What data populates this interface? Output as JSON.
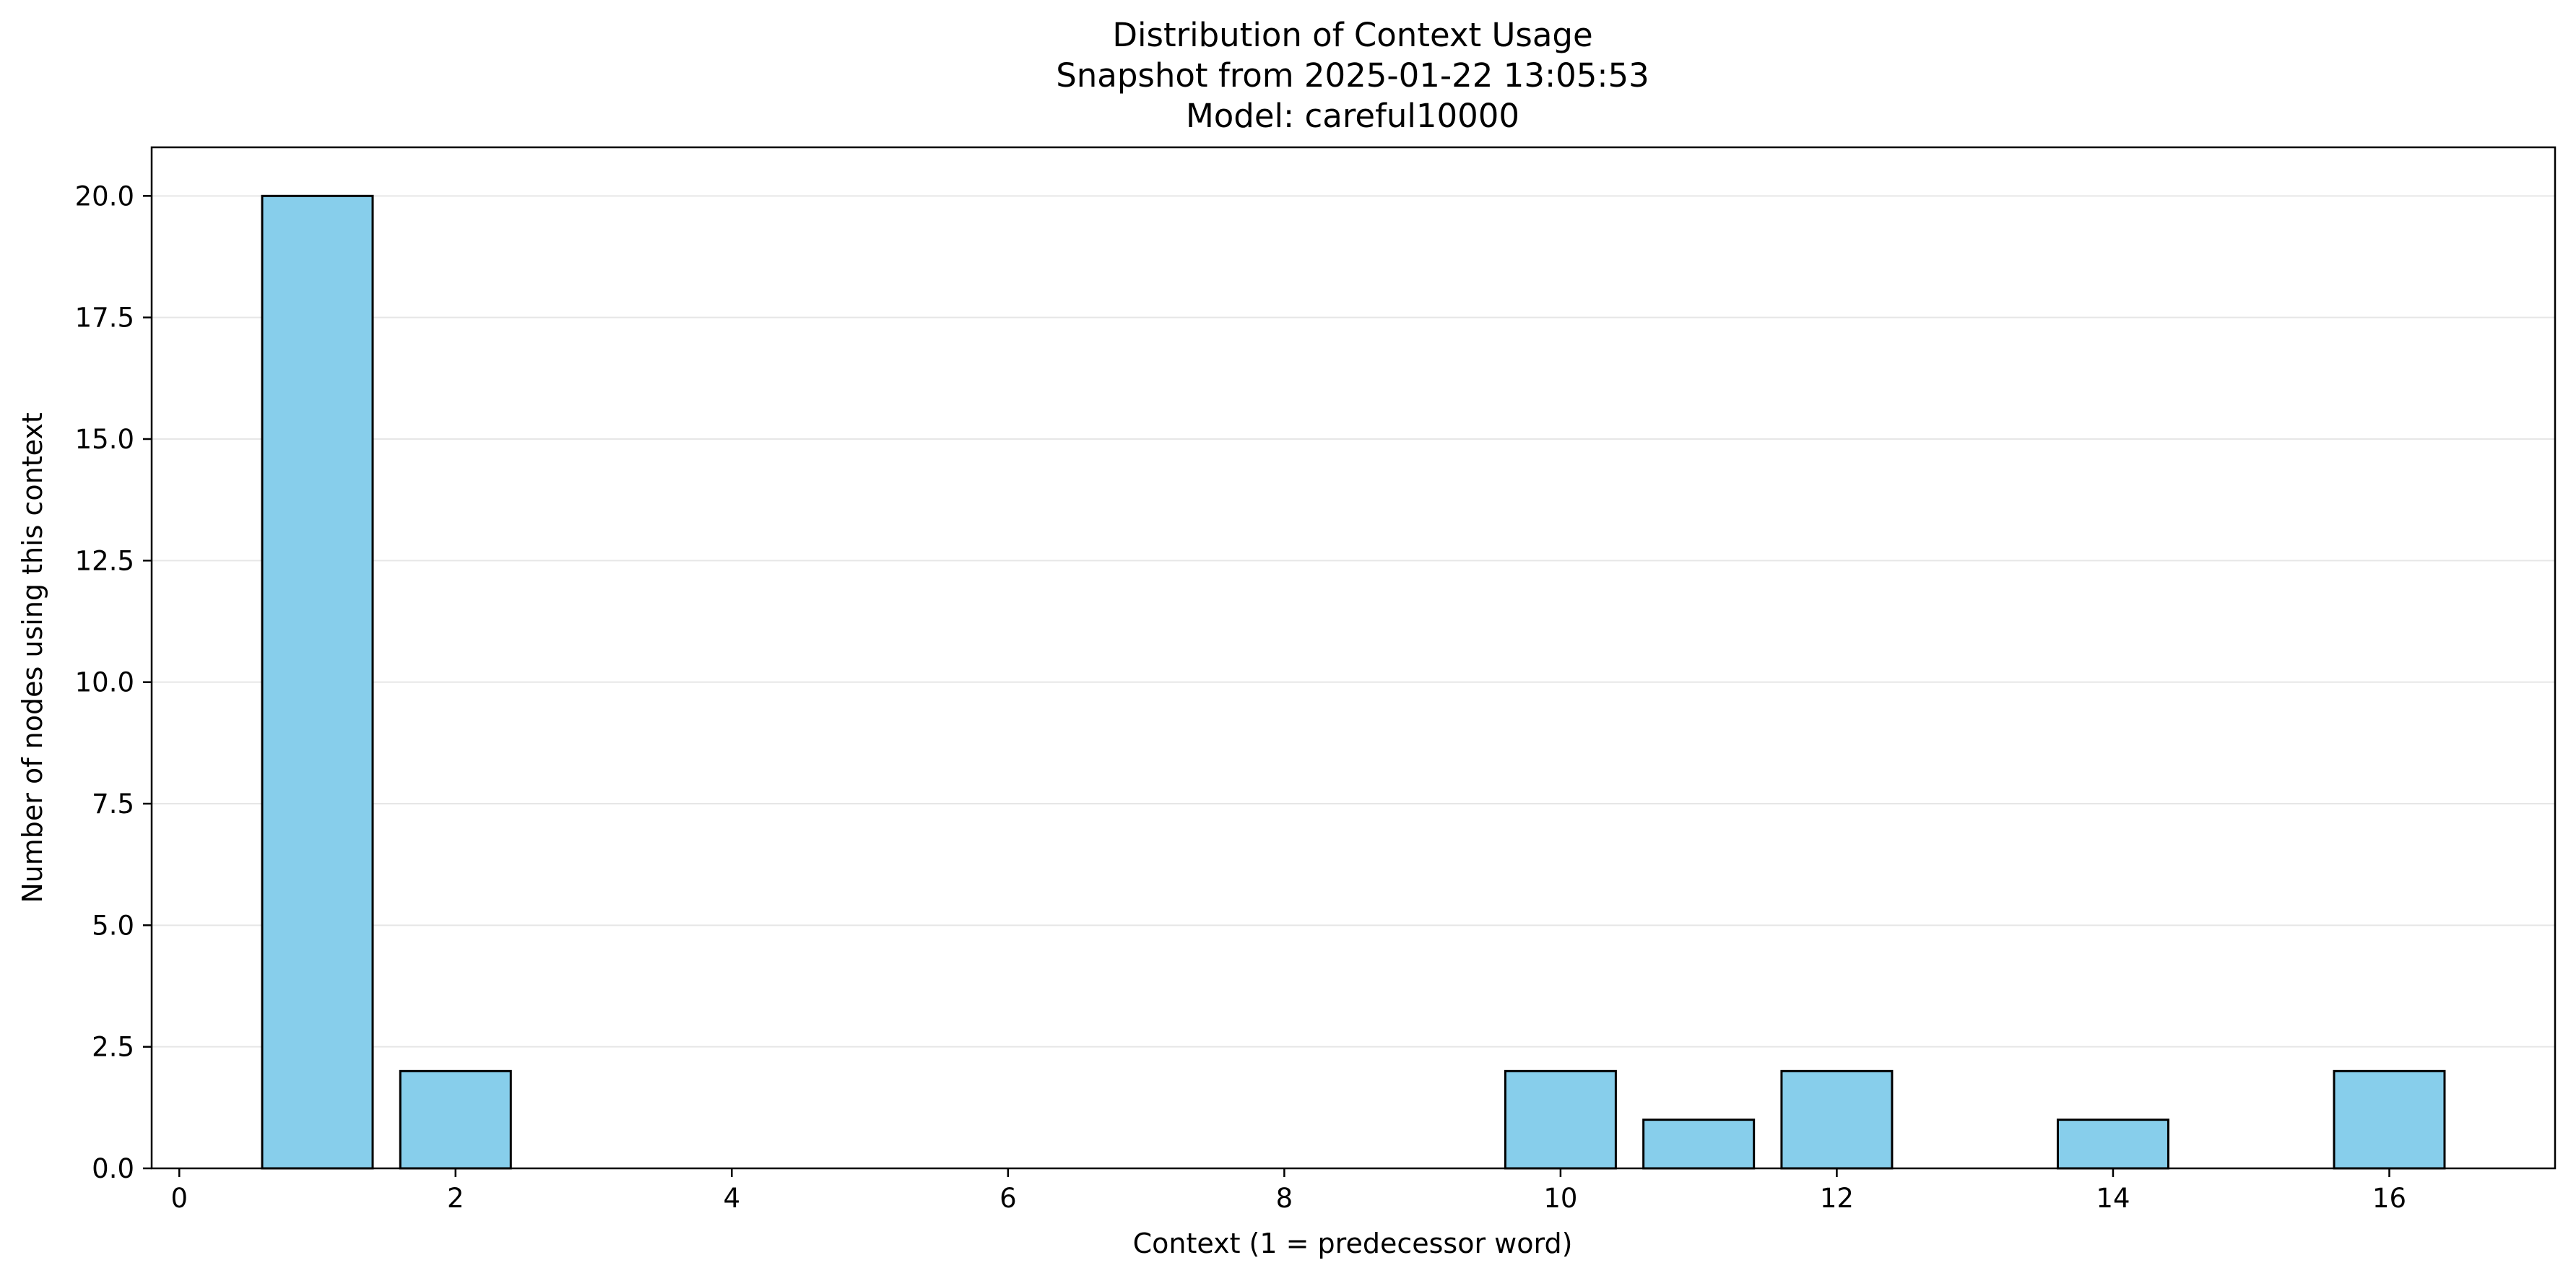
{
  "chart_data": {
    "type": "bar",
    "title_lines": [
      "Distribution of Context Usage",
      "Snapshot from 2025-01-22 13:05:53",
      "Model: careful10000"
    ],
    "xlabel": "Context (1 = predecessor word)",
    "ylabel": "Number of nodes using this context",
    "x": [
      1,
      2,
      10,
      11,
      12,
      14,
      16
    ],
    "values": [
      20,
      2,
      2,
      1,
      2,
      1,
      2
    ],
    "bar_width": 0.8,
    "xlim": [
      -0.2,
      17.2
    ],
    "ylim": [
      0,
      21
    ],
    "xticks": [
      0,
      2,
      4,
      6,
      8,
      10,
      12,
      14,
      16
    ],
    "xtick_labels": [
      "0",
      "2",
      "4",
      "6",
      "8",
      "10",
      "12",
      "14",
      "16"
    ],
    "yticks": [
      0,
      2.5,
      5,
      7.5,
      10,
      12.5,
      15,
      17.5,
      20
    ],
    "ytick_labels": [
      "0.0",
      "2.5",
      "5.0",
      "7.5",
      "10.0",
      "12.5",
      "15.0",
      "17.5",
      "20.0"
    ],
    "grid": "y",
    "legend": "none",
    "colors": {
      "bar_fill": "#87ceeb",
      "bar_edge": "#000000",
      "grid": "#e6e6e6",
      "axis": "#000000"
    }
  }
}
